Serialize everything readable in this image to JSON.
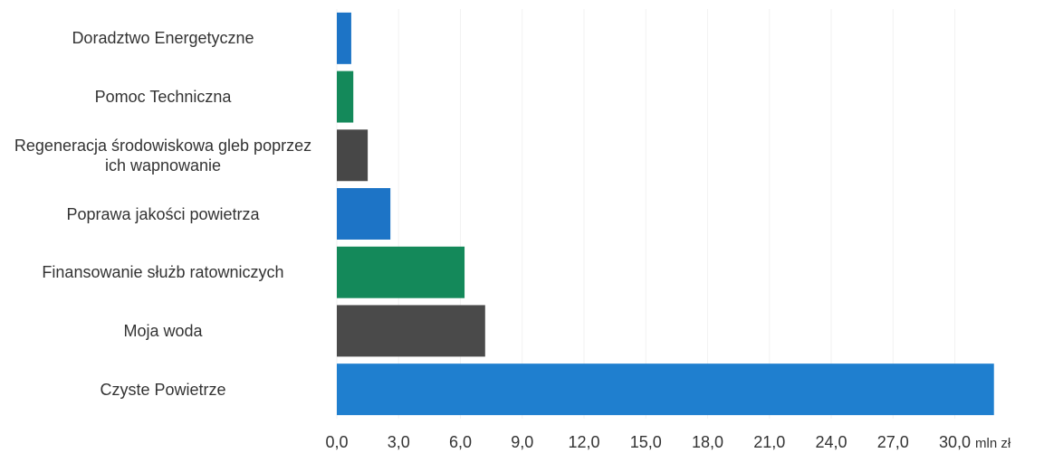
{
  "chart_data": {
    "type": "barh",
    "categories": [
      "Doradztwo Energetyczne",
      "Pomoc Techniczna",
      "Regeneracja środowiskowa gleb poprzez ich wapnowanie",
      "Poprawa jakości powietrza",
      "Finansowanie służb ratowniczych",
      "Moja woda",
      "Czyste Powietrze"
    ],
    "values": [
      0.7,
      0.8,
      1.5,
      2.6,
      6.2,
      7.2,
      31.9
    ],
    "colors": [
      "#1d74c6",
      "#14895a",
      "#474747",
      "#1d74c6",
      "#14895a",
      "#4a4a4a",
      "#1f7fcf"
    ],
    "xlim": [
      0,
      32
    ],
    "xticks": [
      {
        "value": 0,
        "label": "0,0"
      },
      {
        "value": 3,
        "label": "3,0"
      },
      {
        "value": 6,
        "label": "6,0"
      },
      {
        "value": 9,
        "label": "9,0"
      },
      {
        "value": 12,
        "label": "12,0"
      },
      {
        "value": 15,
        "label": "15,0"
      },
      {
        "value": 18,
        "label": "18,0"
      },
      {
        "value": 21,
        "label": "21,0"
      },
      {
        "value": 24,
        "label": "24,0"
      },
      {
        "value": 27,
        "label": "27,0"
      },
      {
        "value": 30,
        "label": "30,0"
      }
    ],
    "x_unit": "mln zł"
  }
}
